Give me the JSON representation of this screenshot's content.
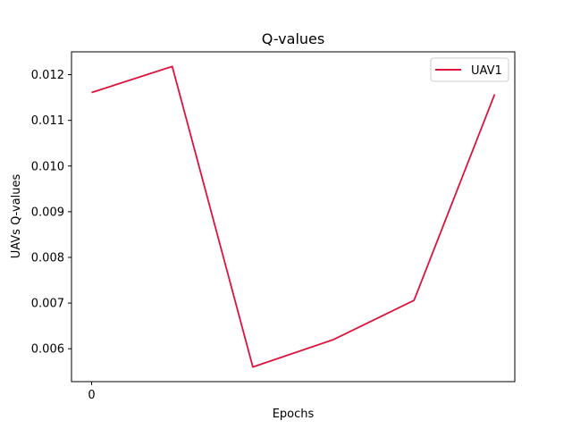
{
  "chart_data": {
    "type": "line",
    "title": "Q-values",
    "xlabel": "Epochs",
    "ylabel": "UAVs Q-values",
    "x": [
      0,
      1,
      2,
      3,
      4,
      5
    ],
    "series": [
      {
        "name": "UAV1",
        "values": [
          0.01161,
          0.01218,
          0.0056,
          0.0062,
          0.00706,
          0.01157
        ],
        "color": "#dc143c"
      }
    ],
    "xlim": [
      -0.25,
      5.25
    ],
    "ylim": [
      0.00528,
      0.0125
    ],
    "xticks": [
      0
    ],
    "xtick_labels": [
      "0"
    ],
    "yticks": [
      0.006,
      0.007,
      0.008,
      0.009,
      0.01,
      0.011,
      0.012
    ],
    "ytick_labels": [
      "0.006",
      "0.007",
      "0.008",
      "0.009",
      "0.010",
      "0.011",
      "0.012"
    ],
    "grid": false,
    "legend_position": "upper right"
  }
}
